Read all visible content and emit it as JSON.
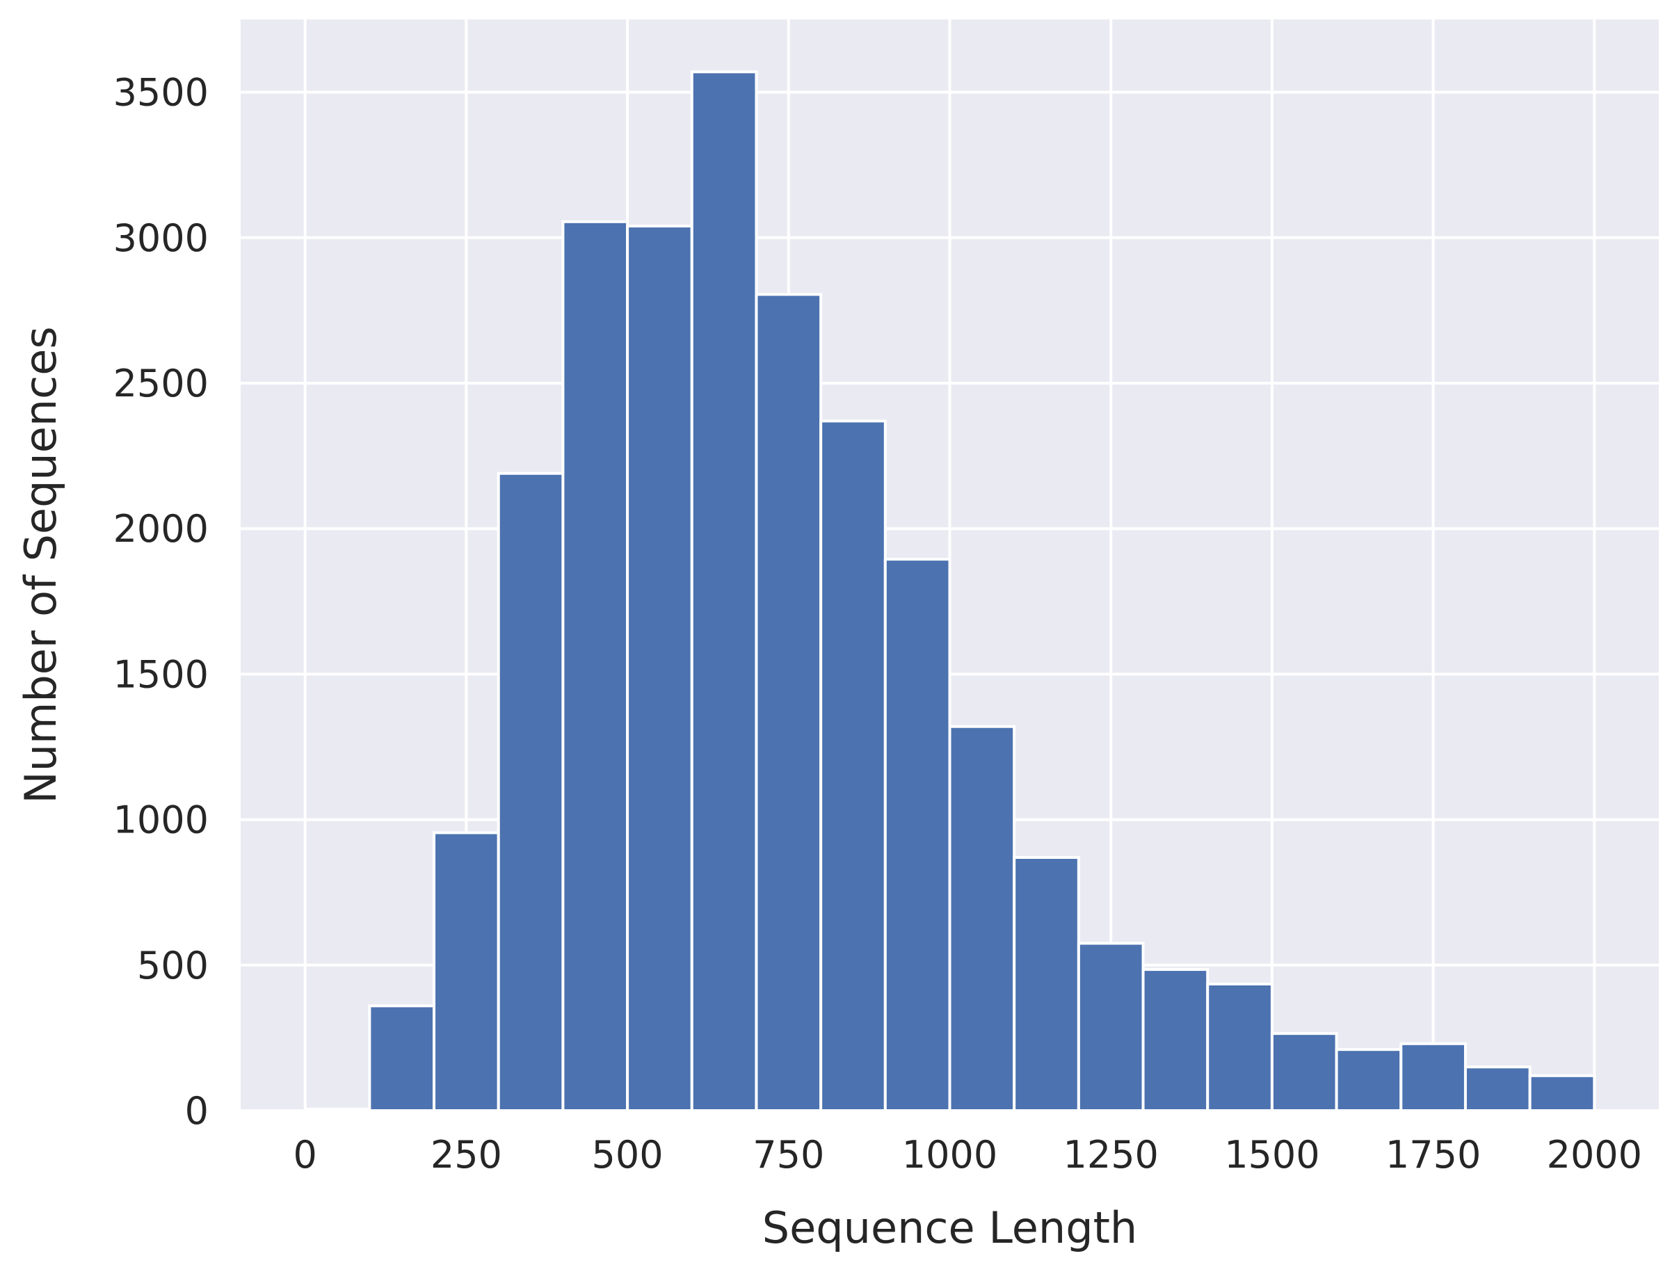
{
  "chart_data": {
    "type": "bar",
    "subtype": "histogram",
    "title": "",
    "xlabel": "Sequence Length",
    "ylabel": "Number of Sequences",
    "xlim": [
      -100,
      2100
    ],
    "ylim": [
      0,
      3750
    ],
    "grid": true,
    "legend": "none",
    "colors": {
      "plot_background": "#eaeaf2",
      "bar_fill": "#4c72b0",
      "bar_edge": "#ffffff",
      "grid": "#ffffff",
      "text": "#262626"
    },
    "x_ticks": [
      0,
      250,
      500,
      750,
      1000,
      1250,
      1500,
      1750,
      2000
    ],
    "x_tick_labels": [
      "0",
      "250",
      "500",
      "750",
      "1000",
      "1250",
      "1500",
      "1750",
      "2000"
    ],
    "y_ticks": [
      0,
      500,
      1000,
      1500,
      2000,
      2500,
      3000,
      3500
    ],
    "y_tick_labels": [
      "0",
      "500",
      "1000",
      "1500",
      "2000",
      "2500",
      "3000",
      "3500"
    ],
    "bins": [
      {
        "start": 0,
        "end": 100,
        "count": 5
      },
      {
        "start": 100,
        "end": 200,
        "count": 360
      },
      {
        "start": 200,
        "end": 300,
        "count": 955
      },
      {
        "start": 300,
        "end": 400,
        "count": 2190
      },
      {
        "start": 400,
        "end": 500,
        "count": 3055
      },
      {
        "start": 500,
        "end": 600,
        "count": 3040
      },
      {
        "start": 600,
        "end": 700,
        "count": 3570
      },
      {
        "start": 700,
        "end": 800,
        "count": 2805
      },
      {
        "start": 800,
        "end": 900,
        "count": 2370
      },
      {
        "start": 900,
        "end": 1000,
        "count": 1895
      },
      {
        "start": 1000,
        "end": 1100,
        "count": 1320
      },
      {
        "start": 1100,
        "end": 1200,
        "count": 870
      },
      {
        "start": 1200,
        "end": 1300,
        "count": 575
      },
      {
        "start": 1300,
        "end": 1400,
        "count": 485
      },
      {
        "start": 1400,
        "end": 1500,
        "count": 435
      },
      {
        "start": 1500,
        "end": 1600,
        "count": 265
      },
      {
        "start": 1600,
        "end": 1700,
        "count": 210
      },
      {
        "start": 1700,
        "end": 1800,
        "count": 230
      },
      {
        "start": 1800,
        "end": 1900,
        "count": 150
      },
      {
        "start": 1900,
        "end": 2000,
        "count": 120
      }
    ]
  }
}
